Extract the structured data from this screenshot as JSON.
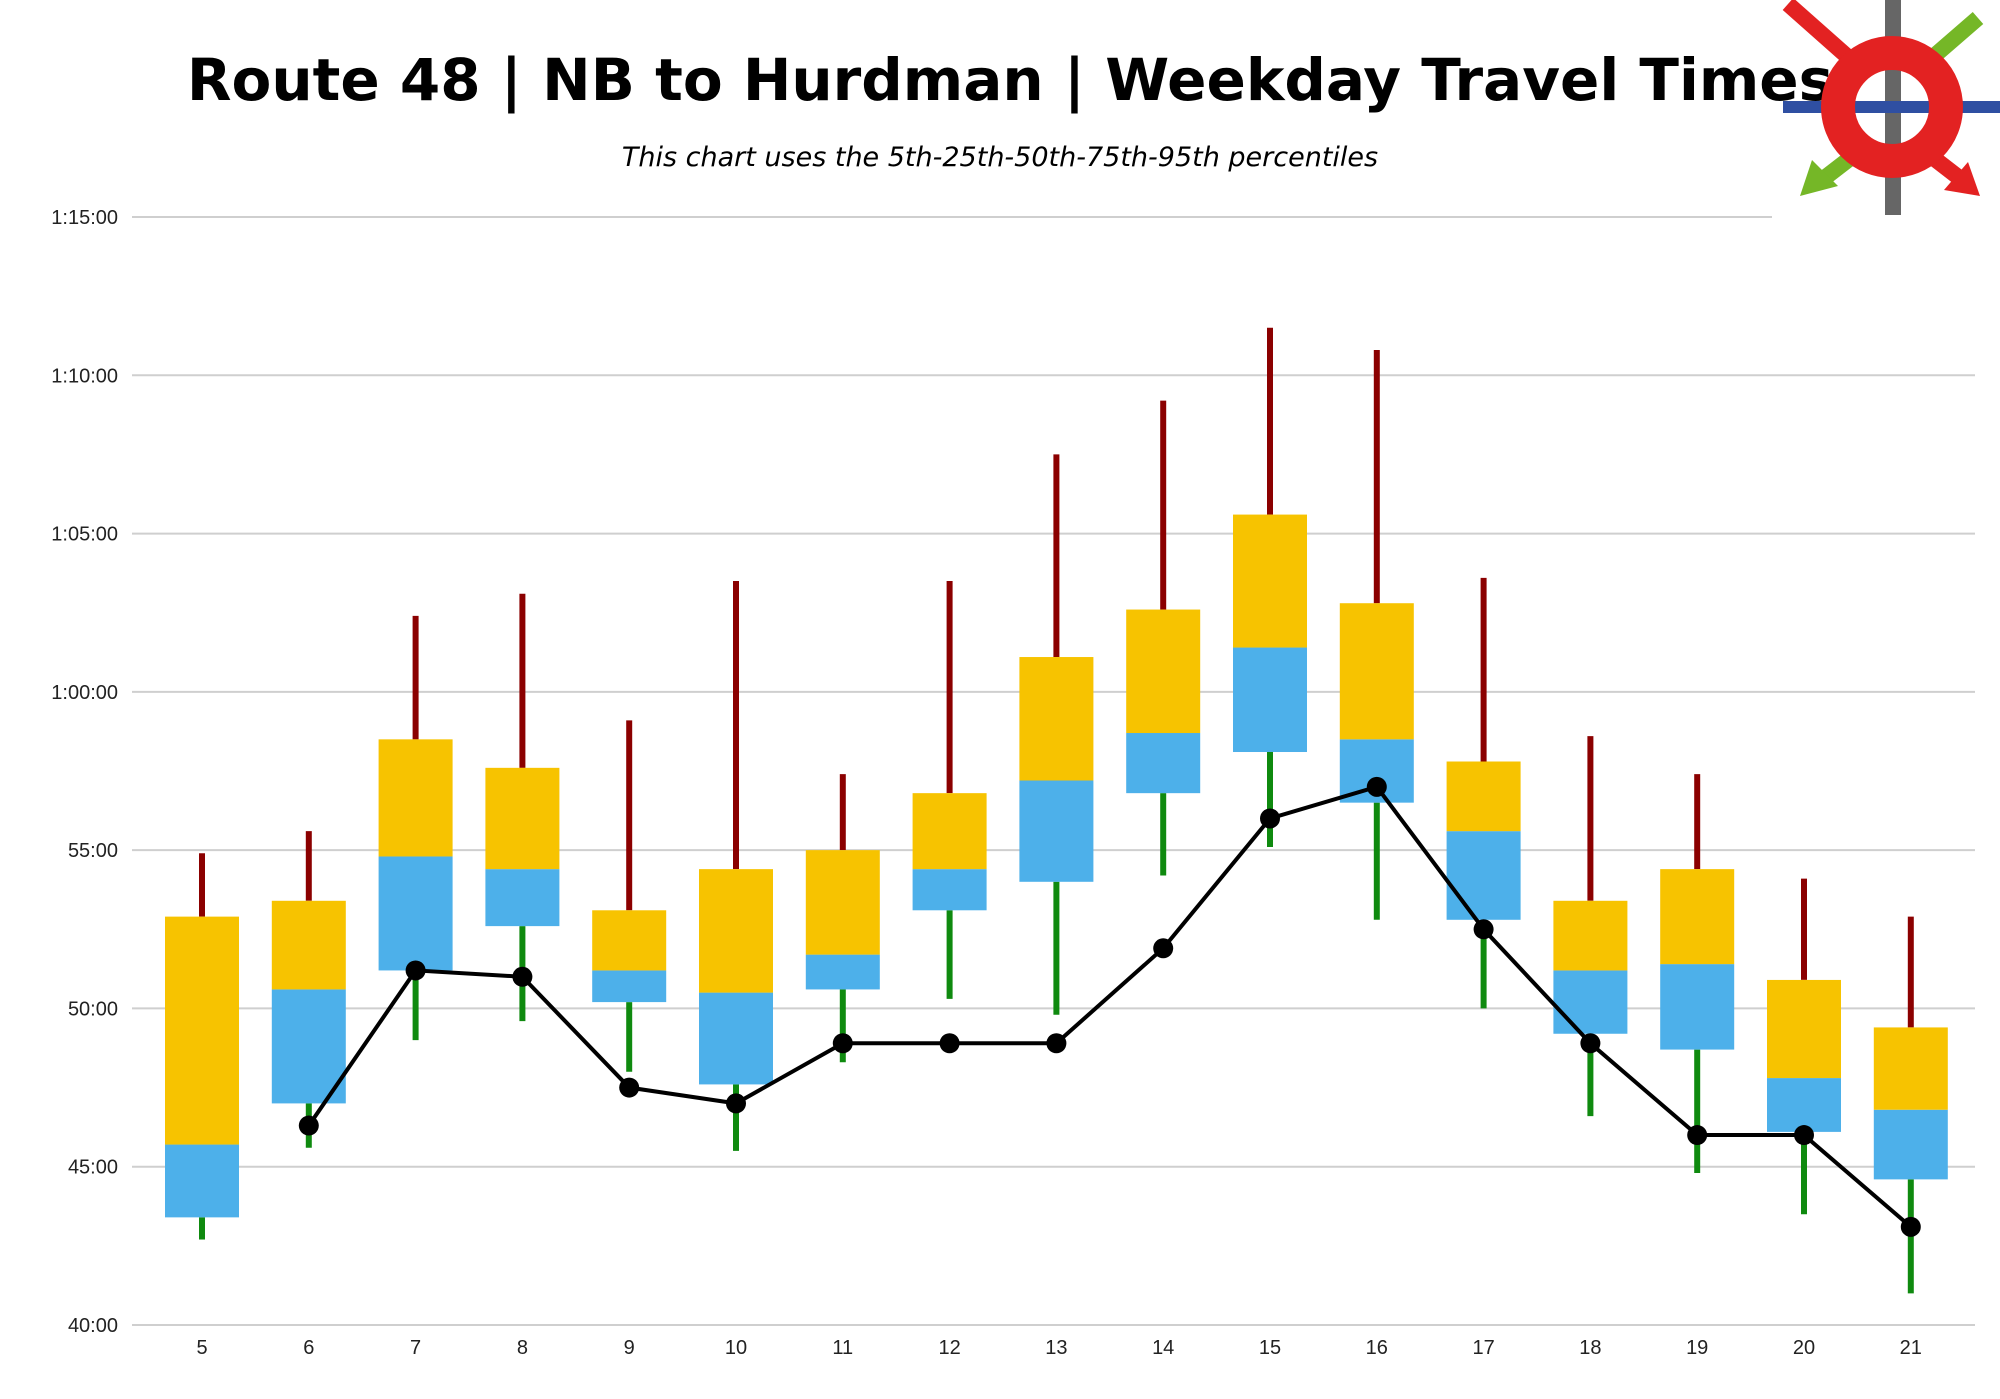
{
  "title": "Route 48 | NB to Hurdman | Weekday Travel Times",
  "subtitle": "This chart uses the 5th-25th-50th-75th-95th percentiles",
  "colors": {
    "upper_whisker": "#8b0000",
    "lower_whisker": "#0f8a0f",
    "upper_box": "#f7c300",
    "lower_box": "#4db0ea",
    "median_line": "#000000",
    "grid": "#cfcfcf"
  },
  "logo": {
    "icon": "transit-roundel-icon"
  },
  "chart_data": {
    "type": "box",
    "y_unit": "minutes",
    "ylim": [
      40,
      75
    ],
    "y_ticks": [
      {
        "value": 40,
        "label": "40:00"
      },
      {
        "value": 45,
        "label": "45:00"
      },
      {
        "value": 50,
        "label": "50:00"
      },
      {
        "value": 55,
        "label": "55:00"
      },
      {
        "value": 60,
        "label": "1:00:00"
      },
      {
        "value": 65,
        "label": "1:05:00"
      },
      {
        "value": 70,
        "label": "1:10:00"
      },
      {
        "value": 75,
        "label": "1:15:00"
      }
    ],
    "categories": [
      "5",
      "6",
      "7",
      "8",
      "9",
      "10",
      "11",
      "12",
      "13",
      "14",
      "15",
      "16",
      "17",
      "18",
      "19",
      "20",
      "21"
    ],
    "p5": [
      42.7,
      45.6,
      49.0,
      49.6,
      48.0,
      45.5,
      48.3,
      50.3,
      49.8,
      54.2,
      55.1,
      52.8,
      50.0,
      46.6,
      44.8,
      43.5,
      41.0
    ],
    "p25": [
      43.4,
      47.0,
      51.2,
      52.6,
      50.2,
      47.6,
      50.6,
      53.1,
      54.0,
      56.8,
      58.1,
      56.5,
      52.8,
      49.2,
      48.7,
      46.1,
      44.6
    ],
    "p50": [
      45.7,
      50.6,
      54.8,
      54.4,
      51.2,
      50.5,
      51.7,
      54.4,
      57.2,
      58.7,
      61.4,
      58.5,
      55.6,
      51.2,
      51.4,
      47.8,
      46.8
    ],
    "p75": [
      52.9,
      53.4,
      58.5,
      57.6,
      53.1,
      54.4,
      55.0,
      56.8,
      61.1,
      62.6,
      65.6,
      62.8,
      57.8,
      53.4,
      54.4,
      50.9,
      49.4
    ],
    "p95": [
      54.9,
      55.6,
      62.4,
      63.1,
      59.1,
      63.5,
      57.4,
      63.5,
      67.5,
      69.2,
      71.5,
      70.8,
      63.6,
      58.6,
      57.4,
      54.1,
      52.9
    ],
    "line_values": [
      null,
      46.3,
      51.2,
      51.0,
      47.5,
      47.0,
      48.9,
      48.9,
      48.9,
      51.9,
      56.0,
      57.0,
      52.5,
      48.9,
      46.0,
      46.0,
      43.1
    ]
  }
}
